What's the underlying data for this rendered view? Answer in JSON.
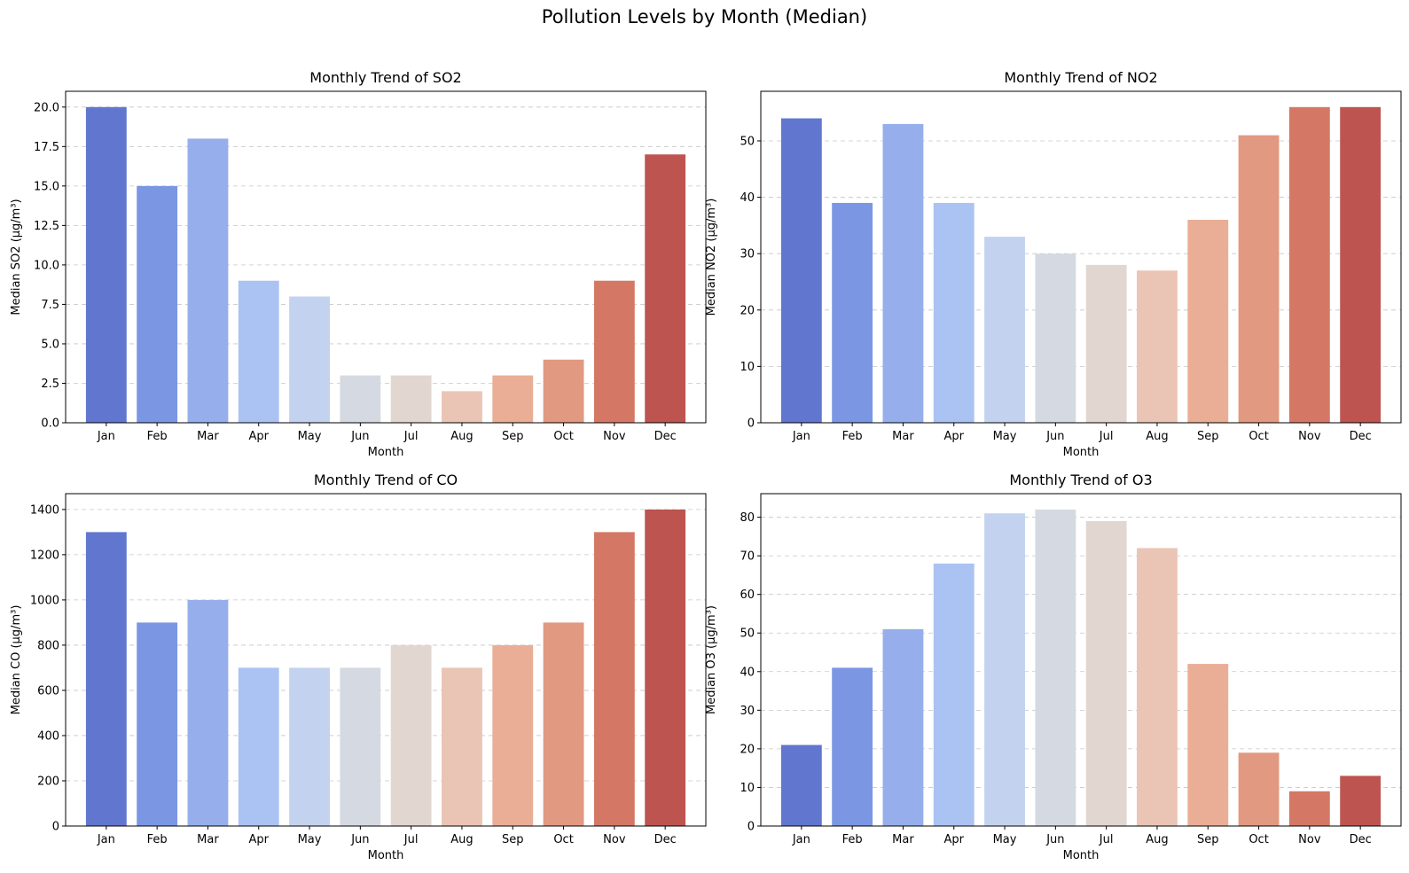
{
  "figure": {
    "title": "Pollution Levels by Month (Median)"
  },
  "palette": [
    "#6176ce",
    "#7b96e3",
    "#96aeeb",
    "#aac3f3",
    "#c3d3ef",
    "#d5dae2",
    "#e2d6d1",
    "#eac5b5",
    "#e9ae95",
    "#e19981",
    "#d47865",
    "#bd5450"
  ],
  "chart_data": [
    {
      "type": "bar",
      "title": "Monthly Trend of SO2",
      "xlabel": "Month",
      "ylabel": "Median SO2 (µg/m³)",
      "categories": [
        "Jan",
        "Feb",
        "Mar",
        "Apr",
        "May",
        "Jun",
        "Jul",
        "Aug",
        "Sep",
        "Oct",
        "Nov",
        "Dec"
      ],
      "values": [
        20,
        15,
        18,
        9,
        8,
        3,
        3,
        2,
        3,
        4,
        9,
        17
      ],
      "ylim": [
        0,
        21
      ],
      "yticks": [
        0,
        2.5,
        5,
        7.5,
        10,
        12.5,
        15,
        17.5,
        20
      ],
      "ytick_labels": [
        "0.0",
        "2.5",
        "5.0",
        "7.5",
        "10.0",
        "12.5",
        "15.0",
        "17.5",
        "20.0"
      ],
      "grid": "y"
    },
    {
      "type": "bar",
      "title": "Monthly Trend of NO2",
      "xlabel": "Month",
      "ylabel": "Median NO2 (µg/m³)",
      "categories": [
        "Jan",
        "Feb",
        "Mar",
        "Apr",
        "May",
        "Jun",
        "Jul",
        "Aug",
        "Sep",
        "Oct",
        "Nov",
        "Dec"
      ],
      "values": [
        54,
        39,
        53,
        39,
        33,
        30,
        28,
        27,
        36,
        51,
        56,
        56
      ],
      "ylim": [
        0,
        58.8
      ],
      "yticks": [
        0,
        10,
        20,
        30,
        40,
        50
      ],
      "ytick_labels": [
        "0",
        "10",
        "20",
        "30",
        "40",
        "50"
      ],
      "grid": "y"
    },
    {
      "type": "bar",
      "title": "Monthly Trend of CO",
      "xlabel": "Month",
      "ylabel": "Median CO (µg/m³)",
      "categories": [
        "Jan",
        "Feb",
        "Mar",
        "Apr",
        "May",
        "Jun",
        "Jul",
        "Aug",
        "Sep",
        "Oct",
        "Nov",
        "Dec"
      ],
      "values": [
        1300,
        900,
        1000,
        700,
        700,
        700,
        800,
        700,
        800,
        900,
        1300,
        1400
      ],
      "ylim": [
        0,
        1470
      ],
      "yticks": [
        0,
        200,
        400,
        600,
        800,
        1000,
        1200,
        1400
      ],
      "ytick_labels": [
        "0",
        "200",
        "400",
        "600",
        "800",
        "1000",
        "1200",
        "1400"
      ],
      "grid": "y"
    },
    {
      "type": "bar",
      "title": "Monthly Trend of O3",
      "xlabel": "Month",
      "ylabel": "Median O3 (µg/m³)",
      "categories": [
        "Jan",
        "Feb",
        "Mar",
        "Apr",
        "May",
        "Jun",
        "Jul",
        "Aug",
        "Sep",
        "Oct",
        "Nov",
        "Dec"
      ],
      "values": [
        21,
        41,
        51,
        68,
        81,
        82,
        79,
        72,
        42,
        19,
        9,
        13
      ],
      "ylim": [
        0,
        86.1
      ],
      "yticks": [
        0,
        10,
        20,
        30,
        40,
        50,
        60,
        70,
        80
      ],
      "ytick_labels": [
        "0",
        "10",
        "20",
        "30",
        "40",
        "50",
        "60",
        "70",
        "80"
      ],
      "grid": "y"
    }
  ]
}
